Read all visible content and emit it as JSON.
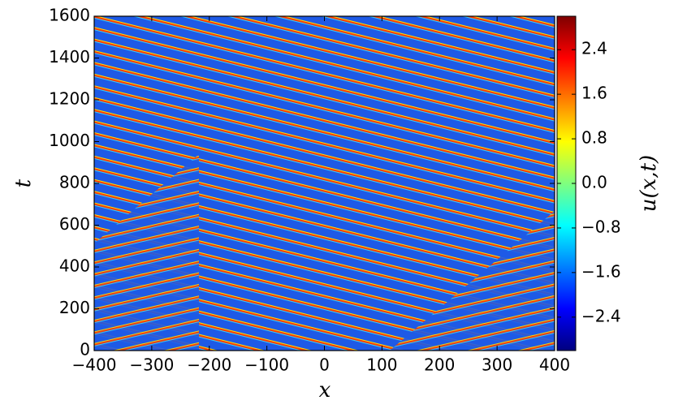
{
  "chart_data": {
    "type": "heatmap",
    "xlabel": "x",
    "ylabel": "t",
    "colorbar_label": "u(x,t)",
    "xlim": [
      -400,
      400
    ],
    "xticks": [
      {
        "value": -400,
        "label": "−400"
      },
      {
        "value": -300,
        "label": "−300"
      },
      {
        "value": -200,
        "label": "−200"
      },
      {
        "value": -100,
        "label": "−100"
      },
      0,
      100,
      200,
      300,
      400
    ],
    "ylim": [
      0,
      1600
    ],
    "yticks": [
      0,
      200,
      400,
      600,
      800,
      1000,
      1200,
      1400,
      1600
    ],
    "clim": [
      -3.0,
      3.0
    ],
    "cticks": [
      2.4,
      1.6,
      0.8,
      {
        "value": 0.0,
        "label": "0.0"
      },
      {
        "value": -0.8,
        "label": "−0.8"
      },
      {
        "value": -1.6,
        "label": "−1.6"
      },
      {
        "value": -2.4,
        "label": "−2.4"
      }
    ],
    "colorscale": [
      "#00007f",
      "#0000ff",
      "#007fff",
      "#00ffff",
      "#7fff7f",
      "#ffff00",
      "#ff7f00",
      "#ff0000",
      "#7f0000"
    ]
  }
}
